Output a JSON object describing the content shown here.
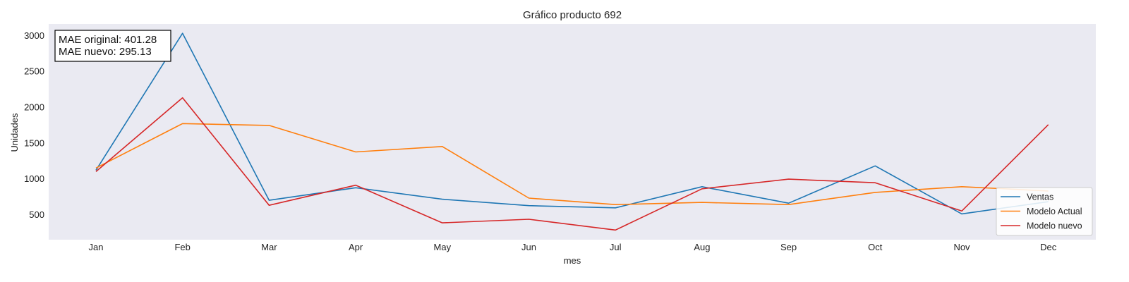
{
  "chart_data": {
    "type": "line",
    "title": "Gráfico producto 692",
    "xlabel": "mes",
    "ylabel": "Unidades",
    "categories": [
      "Jan",
      "Feb",
      "Mar",
      "Apr",
      "May",
      "Jun",
      "Jul",
      "Aug",
      "Sep",
      "Oct",
      "Nov",
      "Dec"
    ],
    "ylim": [
      150,
      3160
    ],
    "yticks": [
      500,
      1000,
      1500,
      2000,
      2500,
      3000
    ],
    "grid": false,
    "legend_position": "bottom-right",
    "series": [
      {
        "name": "Ventas",
        "color": "#1f77b4",
        "values": [
          1120,
          3030,
          700,
          875,
          715,
          625,
          595,
          890,
          660,
          1180,
          510,
          680
        ]
      },
      {
        "name": "Modelo Actual",
        "color": "#ff7f0e",
        "values": [
          1150,
          1770,
          1745,
          1375,
          1450,
          730,
          640,
          670,
          640,
          810,
          890,
          830
        ]
      },
      {
        "name": "Modelo nuevo",
        "color": "#d62728",
        "values": [
          1100,
          2130,
          630,
          910,
          385,
          435,
          285,
          860,
          995,
          945,
          550,
          1755
        ]
      }
    ],
    "annotations": [
      "MAE original: 401.28",
      "MAE nuevo: 295.13"
    ]
  }
}
